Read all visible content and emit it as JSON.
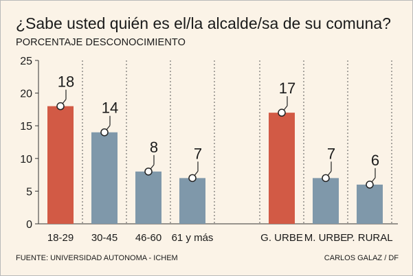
{
  "title": "¿Sabe usted quién es el/la alcalde/sa de su comuna?",
  "subtitle": "PORCENTAJE DESCONOCIMIENTO",
  "source": "FUENTE: UNIVERSIDAD AUTONOMA - ICHEM",
  "credit": "CARLOS GALAZ / DF",
  "colors": {
    "background": "#fbf3e7",
    "highlight": "#d25a45",
    "bar": "#7f98aa",
    "text": "#1a1a1a"
  },
  "chart_data": {
    "type": "bar",
    "title": "¿Sabe usted quién es el/la alcalde/sa de su comuna?",
    "ylabel": "PORCENTAJE DESCONOCIMIENTO",
    "ylim": [
      0,
      25
    ],
    "yticks": [
      0,
      5,
      10,
      15,
      20,
      25
    ],
    "grid": "vertical dotted separators between categories",
    "groups": [
      {
        "categories": [
          "18-29",
          "30-45",
          "46-60",
          "61 y más"
        ],
        "values": [
          18,
          14,
          8,
          7
        ],
        "highlight": [
          true,
          false,
          false,
          false
        ]
      },
      {
        "categories": [
          "G. URBE",
          "M. URBE",
          "P. RURAL"
        ],
        "values": [
          17,
          7,
          6
        ],
        "highlight": [
          true,
          false,
          false
        ]
      }
    ]
  }
}
